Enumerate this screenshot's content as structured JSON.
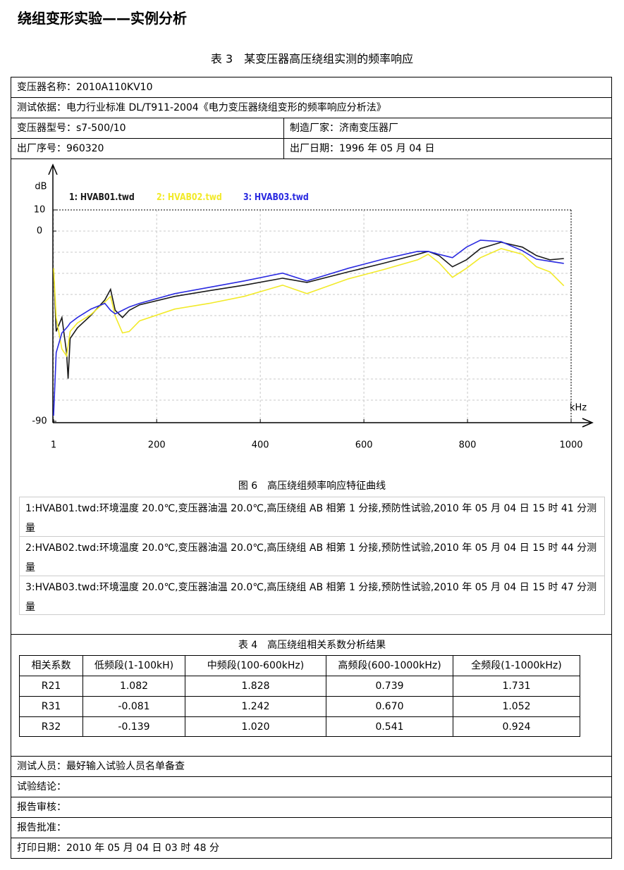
{
  "header": {
    "title": "绕组变形实验——实例分析"
  },
  "table3": {
    "caption": "表 3　某变压器高压绕组实测的频率响应",
    "rows": [
      [
        "变压器名称：2010A110KV10"
      ],
      [
        "测试依据：电力行业标准  DL/T911-2004《电力变压器绕组变形的频率响应分析法》"
      ],
      [
        "变压器型号：s7-500/10",
        "制造厂家：济南变压器厂"
      ],
      [
        "出厂序号：960320",
        "出厂日期：1996 年 05 月 04 日"
      ]
    ]
  },
  "chart_data": {
    "type": "line",
    "y_label": "dB",
    "x_label": "kHz",
    "caption": "图 6　高压绕组频率响应特征曲线",
    "xlim": [
      1,
      1000
    ],
    "ylim": [
      -90,
      10
    ],
    "xticks": [
      1,
      200,
      400,
      600,
      800,
      1000
    ],
    "yticks": [
      10,
      0,
      -90
    ],
    "grid": true,
    "x": [
      1,
      6,
      17,
      26,
      29,
      33,
      47,
      73,
      100,
      111,
      120,
      134,
      147,
      167,
      235,
      302,
      369,
      443,
      490,
      570,
      637,
      704,
      724,
      745,
      771,
      798,
      825,
      865,
      906,
      933,
      959,
      986
    ],
    "series": [
      {
        "name": "1: HVAB01.twd",
        "color": "#1a1a1a",
        "values": [
          -17.6,
          -47.5,
          -40.9,
          -57.5,
          -69.8,
          -50.8,
          -45.8,
          -39.9,
          -32.6,
          -27.6,
          -37.5,
          -40.9,
          -37.5,
          -34.9,
          -30.9,
          -28.2,
          -25.6,
          -22.3,
          -24.3,
          -19.3,
          -15.3,
          -11.0,
          -9.6,
          -11.6,
          -16.9,
          -13.6,
          -8.3,
          -5.3,
          -7.6,
          -11.6,
          -13.6,
          -13.0
        ]
      },
      {
        "name": "2: HVAB02.twd",
        "color": "#f2ea2a",
        "values": [
          -17.6,
          -40.9,
          -55.8,
          -59.1,
          -54.2,
          -47.5,
          -43.5,
          -39.5,
          -33.6,
          -30.9,
          -40.2,
          -48.2,
          -47.5,
          -42.5,
          -36.9,
          -34.2,
          -30.9,
          -25.6,
          -29.6,
          -22.6,
          -18.3,
          -13.6,
          -11.0,
          -15.0,
          -21.9,
          -17.6,
          -12.6,
          -8.3,
          -11.0,
          -16.9,
          -19.3,
          -25.9
        ]
      },
      {
        "name": "3: HVAB03.twd",
        "color": "#2a2ae0",
        "values": [
          -87.4,
          -57.5,
          -48.2,
          -45.8,
          -44.9,
          -43.5,
          -40.9,
          -36.9,
          -34.2,
          -37.5,
          -39.2,
          -37.5,
          -35.9,
          -34.2,
          -29.6,
          -26.6,
          -23.6,
          -19.9,
          -23.6,
          -17.6,
          -13.3,
          -9.6,
          -9.6,
          -11.0,
          -12.6,
          -7.6,
          -4.3,
          -5.0,
          -9.3,
          -13.3,
          -14.3,
          -15.3
        ]
      }
    ]
  },
  "notes": [
    "1:HVAB01.twd:环境温度 20.0℃,变压器油温 20.0℃,高压绕组 AB 相第 1 分接,预防性试验,2010 年 05 月 04 日 15 时 41 分测量",
    "2:HVAB02.twd:环境温度 20.0℃,变压器油温 20.0℃,高压绕组 AB 相第 1 分接,预防性试验,2010 年 05 月 04 日 15 时 44 分测量",
    "3:HVAB03.twd:环境温度 20.0℃,变压器油温 20.0℃,高压绕组 AB 相第 1 分接,预防性试验,2010 年 05 月 04 日 15 时 47 分测量"
  ],
  "table4": {
    "caption": "表 4　高压绕组相关系数分析结果",
    "header": [
      "相关系数",
      "低频段(1-100kH)",
      "中频段(100-600kHz)",
      "高频段(600-1000kHz)",
      "全频段(1-1000kHz)"
    ],
    "rows": [
      [
        "R21",
        "1.082",
        "1.828",
        "0.739",
        "1.731"
      ],
      [
        "R31",
        "-0.081",
        "1.242",
        "0.670",
        "1.052"
      ],
      [
        "R32",
        "-0.139",
        "1.020",
        "0.541",
        "0.924"
      ]
    ]
  },
  "footer": [
    "测试人员：最好输入试验人员名单备查",
    "试验结论：",
    "报告审核：",
    "报告批准：",
    "打印日期：2010 年 05 月 04 日 03 时 48 分"
  ]
}
